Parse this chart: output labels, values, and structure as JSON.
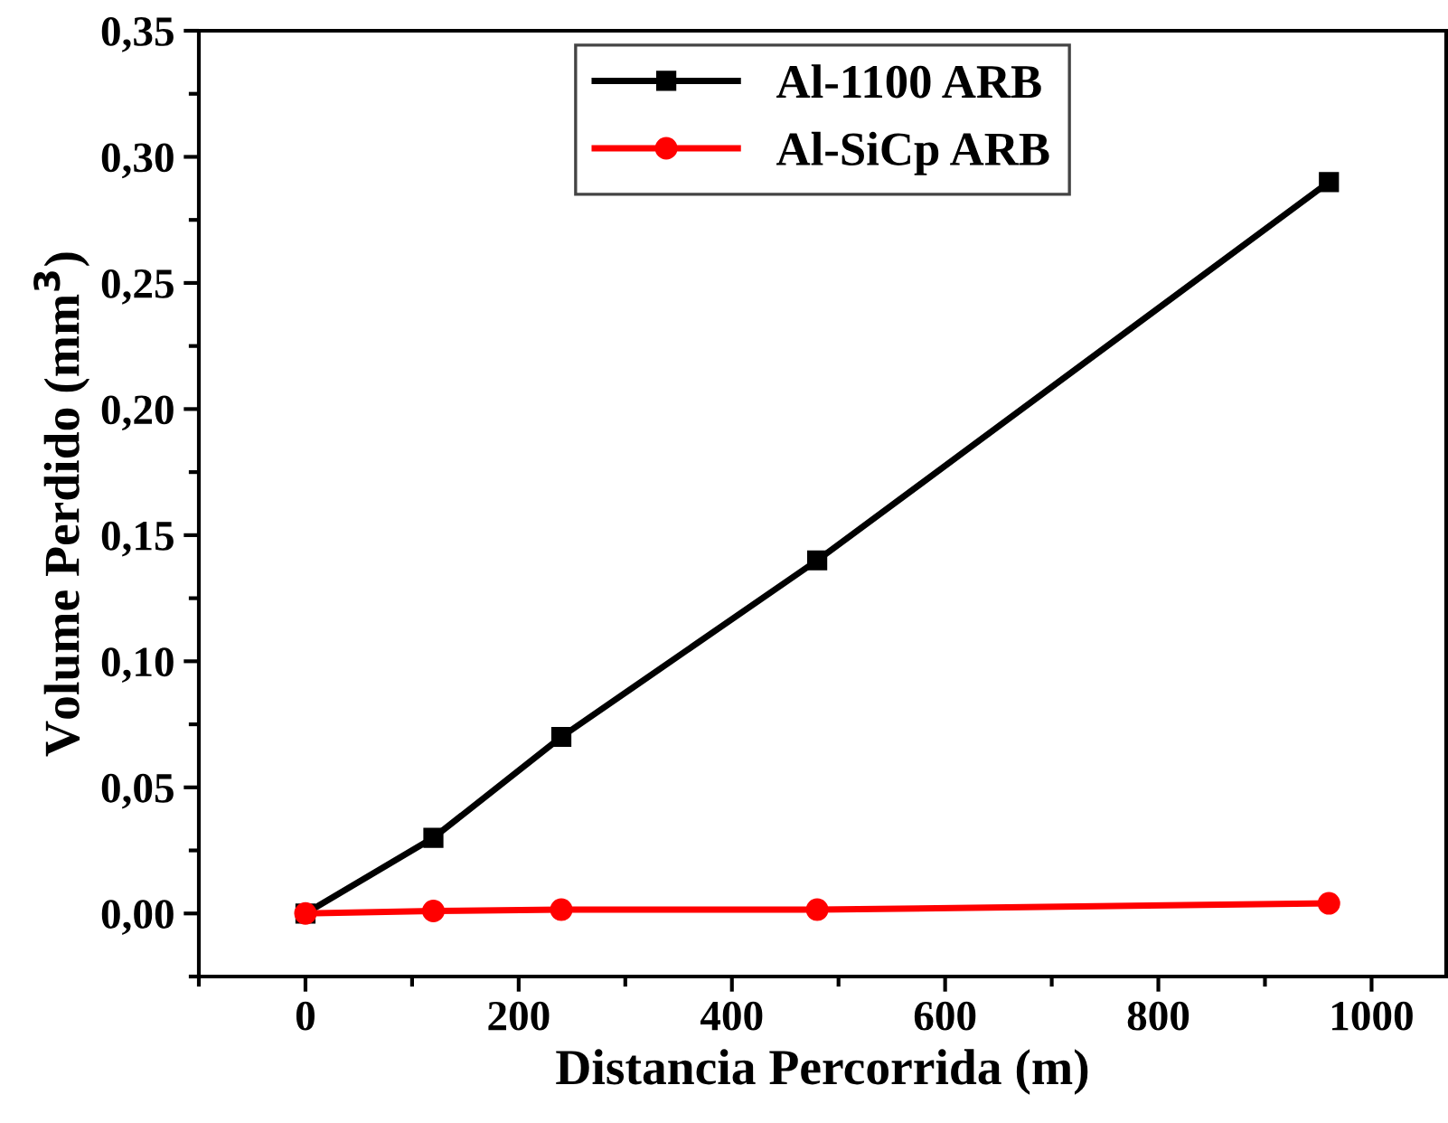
{
  "chart_data": {
    "type": "line",
    "xlabel": "Distancia Percorrida (m)",
    "ylabel": "Volume Perdido (mm$^{3}$)",
    "xlim": [
      -100,
      1070
    ],
    "ylim": [
      -0.025,
      0.35
    ],
    "xticks": [
      {
        "value": -100,
        "label": null
      },
      0,
      {
        "value": 100,
        "label": null
      },
      200,
      {
        "value": 300,
        "label": null
      },
      400,
      {
        "value": 500,
        "label": null
      },
      600,
      {
        "value": 700,
        "label": null
      },
      800,
      {
        "value": 900,
        "label": null
      },
      1000
    ],
    "yticks": [
      {
        "value": -0.025,
        "label": null
      },
      {
        "value": 0,
        "label": "0,00"
      },
      {
        "value": 0.025,
        "label": null
      },
      {
        "value": 0.05,
        "label": "0,05"
      },
      {
        "value": 0.075,
        "label": null
      },
      {
        "value": 0.1,
        "label": "0,10"
      },
      {
        "value": 0.125,
        "label": null
      },
      {
        "value": 0.15,
        "label": "0,15"
      },
      {
        "value": 0.175,
        "label": null
      },
      {
        "value": 0.2,
        "label": "0,20"
      },
      {
        "value": 0.225,
        "label": null
      },
      {
        "value": 0.25,
        "label": "0,25"
      },
      {
        "value": 0.275,
        "label": null
      },
      {
        "value": 0.3,
        "label": "0,30"
      },
      {
        "value": 0.325,
        "label": null
      },
      {
        "value": 0.35,
        "label": "0,35"
      }
    ],
    "x": [
      0,
      120,
      240,
      480,
      960
    ],
    "series": [
      {
        "name": "Al-1100 ARB",
        "color": "#000000",
        "marker": "square",
        "values": [
          0,
          0.03,
          0.07,
          0.14,
          0.29
        ]
      },
      {
        "name": "Al-SiCp ARB",
        "color": "#ff0000",
        "marker": "circle",
        "values": [
          0,
          0.001,
          0.0015,
          0.0015,
          0.004
        ]
      }
    ],
    "grid": false,
    "legend": "top"
  }
}
